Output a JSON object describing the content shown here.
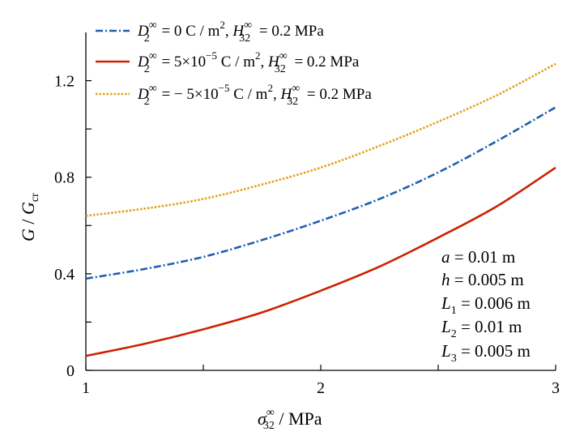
{
  "chart_data": {
    "type": "line",
    "title": "",
    "xlabel": "σ₃₂^∞ / MPa",
    "ylabel": "G / Gcr",
    "xlim": [
      1,
      3
    ],
    "ylim": [
      0,
      1.4
    ],
    "x_ticks": [
      "1",
      "2",
      "3"
    ],
    "y_ticks": [
      "0",
      "0.4",
      "0.8",
      "1.2"
    ],
    "grid": false,
    "legend_position": "top-left",
    "series": [
      {
        "name": "D2∞ = 0 C / m², H32∞ = 0.2 MPa",
        "color": "#1f5fb0",
        "style": "dashdot",
        "x": [
          1.0,
          1.25,
          1.5,
          1.75,
          2.0,
          2.25,
          2.5,
          2.75,
          3.0
        ],
        "values": [
          0.38,
          0.42,
          0.47,
          0.54,
          0.62,
          0.71,
          0.82,
          0.95,
          1.09
        ]
      },
      {
        "name": "D2∞ = 5×10⁻⁵ C / m², H32∞ = 0.2 MPa",
        "color": "#cc2200",
        "style": "solid",
        "x": [
          1.0,
          1.25,
          1.5,
          1.75,
          2.0,
          2.25,
          2.5,
          2.75,
          3.0
        ],
        "values": [
          0.06,
          0.11,
          0.17,
          0.24,
          0.33,
          0.43,
          0.55,
          0.68,
          0.84
        ]
      },
      {
        "name": "D2∞ = −5×10⁻⁵ C / m², H32∞ = 0.2 MPa",
        "color": "#e0a21b",
        "style": "dotted",
        "x": [
          1.0,
          1.25,
          1.5,
          1.75,
          2.0,
          2.25,
          2.5,
          2.75,
          3.0
        ],
        "values": [
          0.64,
          0.67,
          0.71,
          0.77,
          0.84,
          0.93,
          1.03,
          1.14,
          1.27
        ]
      }
    ],
    "annotations": [
      "a = 0.01 m",
      "h = 0.005 m",
      "L1 = 0.006 m",
      "L2 = 0.01 m",
      "L3 = 0.005 m"
    ]
  },
  "legend": [
    {
      "D_main": "D",
      "D_sub": "2",
      "D_sup": "∞",
      "D_value": "= 0 C / m",
      "D_unit_sup": "2",
      "H_main": "H",
      "H_sub": "32",
      "H_sup": "∞",
      "H_value": "= 0.2 MPa",
      "exp": ""
    },
    {
      "D_main": "D",
      "D_sub": "2",
      "D_sup": "∞",
      "D_value": "= 5×10",
      "exp": "−5",
      "D_value2": " C / m",
      "D_unit_sup": "2",
      "H_main": "H",
      "H_sub": "32",
      "H_sup": "∞",
      "H_value": "= 0.2 MPa"
    },
    {
      "D_main": "D",
      "D_sub": "2",
      "D_sup": "∞",
      "D_value": "= − 5×10",
      "exp": "−5",
      "D_value2": " C / m",
      "D_unit_sup": "2",
      "H_main": "H",
      "H_sub": "32",
      "H_sup": "∞",
      "H_value": "= 0.2 MPa"
    }
  ],
  "axis": {
    "ylabel_main": "G",
    "ylabel_sep": " / ",
    "ylabel_main2": "G",
    "ylabel_sub": "cr",
    "xlabel_main": "σ",
    "xlabel_sub": "32",
    "xlabel_sup": "∞",
    "xlabel_unit": " / MPa"
  },
  "params": [
    {
      "sym": "a",
      "sub": "",
      "val": " = 0.01 m"
    },
    {
      "sym": "h",
      "sub": "",
      "val": " = 0.005 m"
    },
    {
      "sym": "L",
      "sub": "1",
      "val": " = 0.006 m"
    },
    {
      "sym": "L",
      "sub": "2",
      "val": " = 0.01 m"
    },
    {
      "sym": "L",
      "sub": "3",
      "val": " = 0.005 m"
    }
  ]
}
